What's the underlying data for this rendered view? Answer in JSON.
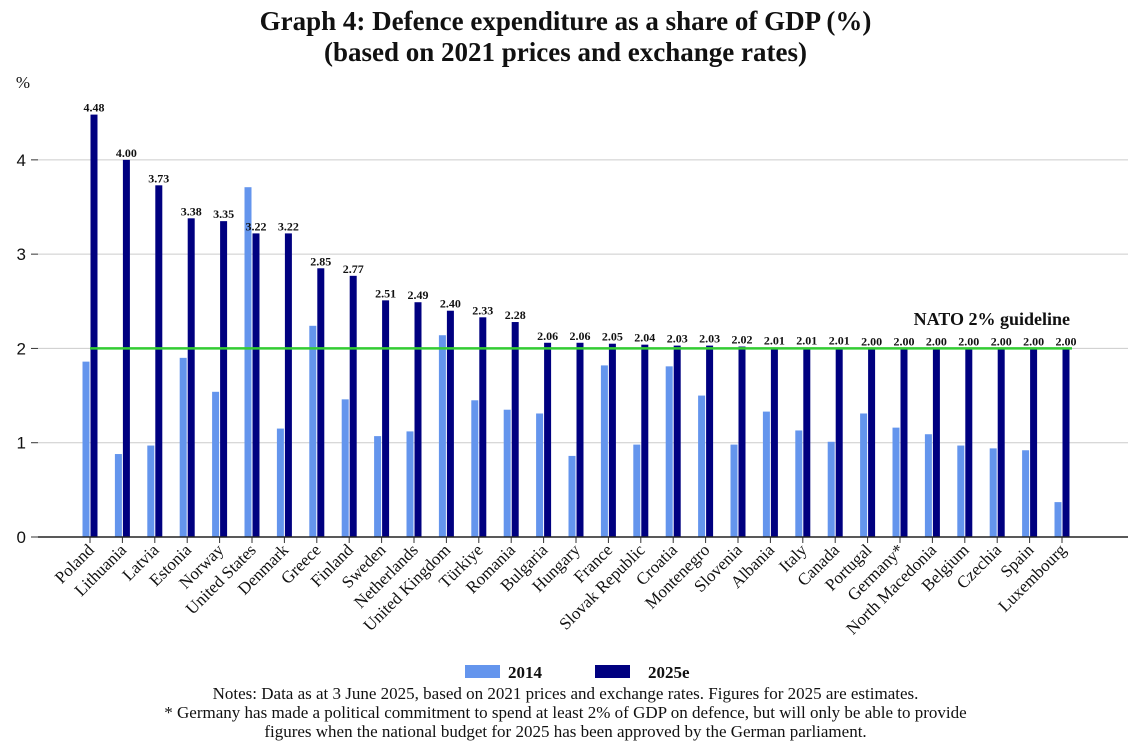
{
  "chart_data": {
    "type": "bar",
    "title_lines": [
      "Graph 4: Defence expenditure as a share of GDP (%)",
      "(based on 2021 prices and exchange rates)"
    ],
    "ylabel": "%",
    "ylim": [
      0,
      4.9
    ],
    "yticks": [
      0,
      1,
      2,
      3,
      4
    ],
    "grid": true,
    "categories": [
      "Poland",
      "Lithuania",
      "Latvia",
      "Estonia",
      "Norway",
      "United States",
      "Denmark",
      "Greece",
      "Finland",
      "Sweden",
      "Netherlands",
      "United Kingdom",
      "Türkiye",
      "Romania",
      "Bulgaria",
      "Hungary",
      "France",
      "Slovak Republic",
      "Croatia",
      "Montenegro",
      "Slovenia",
      "Albania",
      "Italy",
      "Canada",
      "Portugal",
      "Germany*",
      "North Macedonia",
      "Belgium",
      "Czechia",
      "Spain",
      "Luxembourg"
    ],
    "series": [
      {
        "name": "2014",
        "color": "#6495ED",
        "values": [
          1.86,
          0.88,
          0.97,
          1.9,
          1.54,
          3.71,
          1.15,
          2.24,
          1.46,
          1.07,
          1.12,
          2.14,
          1.45,
          1.35,
          1.31,
          0.86,
          1.82,
          0.98,
          1.81,
          1.5,
          0.98,
          1.33,
          1.13,
          1.01,
          1.31,
          1.16,
          1.09,
          0.97,
          0.94,
          0.92,
          0.37
        ]
      },
      {
        "name": "2025e",
        "color": "#000080",
        "values": [
          4.48,
          4.0,
          3.73,
          3.38,
          3.35,
          3.22,
          3.22,
          2.85,
          2.77,
          2.51,
          2.49,
          2.4,
          2.33,
          2.28,
          2.06,
          2.06,
          2.05,
          2.04,
          2.03,
          2.03,
          2.02,
          2.01,
          2.01,
          2.01,
          2.0,
          2.0,
          2.0,
          2.0,
          2.0,
          2.0,
          2.0
        ],
        "data_labels": [
          "4.48",
          "4.00",
          "3.73",
          "3.38",
          "3.35",
          "3.22",
          "3.22",
          "2.85",
          "2.77",
          "2.51",
          "2.49",
          "2.40",
          "2.33",
          "2.28",
          "2.06",
          "2.06",
          "2.05",
          "2.04",
          "2.03",
          "2.03",
          "2.02",
          "2.01",
          "2.01",
          "2.01",
          "2.00",
          "2.00",
          "2.00",
          "2.00",
          "2.00",
          "2.00",
          "2.00"
        ]
      }
    ],
    "reference_line": {
      "value": 2,
      "label": "NATO 2% guideline",
      "color": "#33CC33"
    },
    "legend": {
      "placement": "bottom-center"
    },
    "notes": [
      "Notes: Data as at 3 June 2025, based on 2021 prices and exchange rates. Figures for 2025 are estimates.",
      "* Germany has made a political commitment to spend at least 2% of GDP on defence, but will only be able to provide",
      "figures when the national budget for 2025 has been approved by the German parliament."
    ]
  }
}
